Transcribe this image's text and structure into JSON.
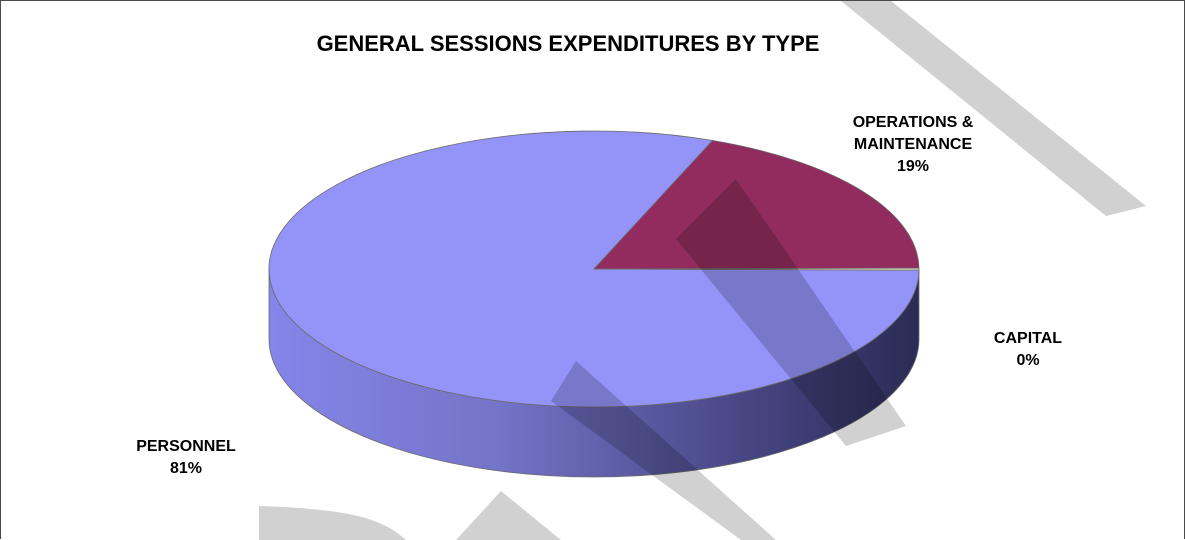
{
  "chart_data": {
    "type": "pie",
    "title": "GENERAL SESSIONS EXPENDITURES BY TYPE",
    "categories": [
      "PERSONNEL",
      "OPERATIONS & MAINTENANCE",
      "CAPITAL"
    ],
    "values": [
      81,
      19,
      0
    ],
    "labels": [
      {
        "category": "PERSONNEL",
        "value": "81%"
      },
      {
        "category": "OPERATIONS & MAINTENANCE",
        "value": "19%"
      },
      {
        "category": "CAPITAL",
        "value": "0%"
      }
    ],
    "colors": [
      "#9393f8",
      "#922c5e",
      "#f2eec0"
    ],
    "legend": "none",
    "style": "3d",
    "watermark": "DRAFT"
  }
}
